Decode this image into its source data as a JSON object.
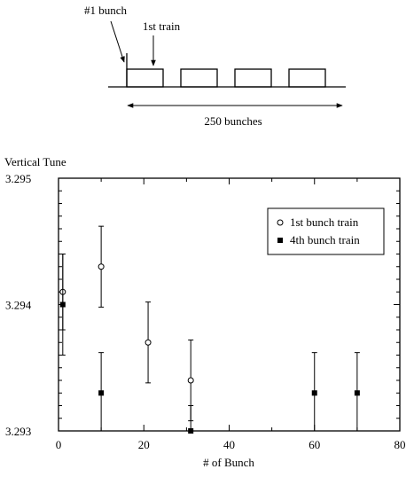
{
  "schematic": {
    "first_bunch_label": "#1 bunch",
    "first_train_label": "1st train",
    "span_label": "250 bunches",
    "train_count": 4
  },
  "chart_data": {
    "type": "scatter",
    "ylabel": "Vertical Tune",
    "xlabel": "# of Bunch",
    "xlim": [
      0,
      80
    ],
    "ylim": [
      3.293,
      3.295
    ],
    "x_ticks": [
      "0",
      "20",
      "40",
      "60",
      "80"
    ],
    "y_ticks": [
      "3.293",
      "3.294",
      "3.295"
    ],
    "legend_position": "top-right",
    "error_bars": true,
    "series": [
      {
        "name": "1st bunch train",
        "marker": "open-circle",
        "points": [
          {
            "x": 1,
            "y": 3.2941,
            "err": 0.0003
          },
          {
            "x": 10,
            "y": 3.2943,
            "err": 0.00032
          },
          {
            "x": 21,
            "y": 3.2937,
            "err": 0.00032
          },
          {
            "x": 31,
            "y": 3.2934,
            "err": 0.00032
          }
        ]
      },
      {
        "name": "4th bunch train",
        "marker": "filled-square",
        "points": [
          {
            "x": 1,
            "y": 3.294,
            "err": 0.0004
          },
          {
            "x": 10,
            "y": 3.2933,
            "err": 0.00032
          },
          {
            "x": 31,
            "y": 3.293,
            "err": 0.0002
          },
          {
            "x": 60,
            "y": 3.2933,
            "err": 0.00032
          },
          {
            "x": 70,
            "y": 3.2933,
            "err": 0.00032
          }
        ]
      }
    ]
  }
}
